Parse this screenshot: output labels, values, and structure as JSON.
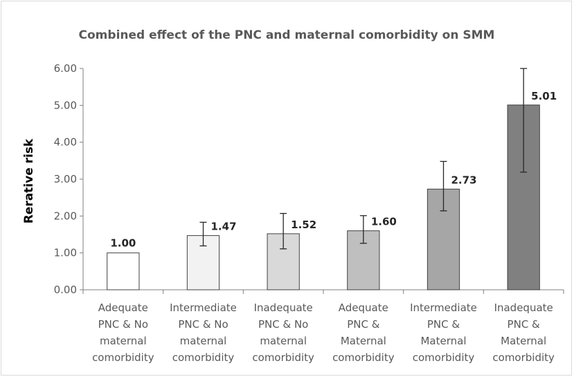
{
  "chart_data": {
    "type": "bar",
    "title": "Combined effect of the PNC and maternal comorbidity on SMM",
    "xlabel": "",
    "ylabel": "Rerative risk",
    "ylim": [
      0,
      6
    ],
    "y_ticks": [
      0,
      1,
      2,
      3,
      4,
      5,
      6
    ],
    "y_tick_labels": [
      "0.00",
      "1.00",
      "2.00",
      "3.00",
      "4.00",
      "5.00",
      "6.00"
    ],
    "grid": false,
    "legend": "none",
    "categories": [
      [
        "Adequate",
        "PNC & No",
        "maternal",
        "comorbidity"
      ],
      [
        "Intermediate",
        "PNC & No",
        "maternal",
        "comorbidity"
      ],
      [
        "Inadequate",
        "PNC & No",
        "maternal",
        "comorbidity"
      ],
      [
        "Adequate",
        "PNC &",
        "Maternal",
        "comorbidity"
      ],
      [
        "Intermediate",
        "PNC &",
        "Maternal",
        "comorbidity"
      ],
      [
        "Inadequate",
        "PNC &",
        "Maternal",
        "comorbidity"
      ]
    ],
    "values": [
      1.0,
      1.47,
      1.52,
      1.6,
      2.73,
      5.01
    ],
    "value_labels": [
      "1.00",
      "1.47",
      "1.52",
      "1.60",
      "2.73",
      "5.01"
    ],
    "error_low": [
      null,
      1.19,
      1.11,
      1.26,
      2.14,
      3.19
    ],
    "error_high": [
      null,
      1.83,
      2.07,
      2.01,
      3.48,
      6.0
    ],
    "bar_colors": [
      "#ffffff",
      "#f2f2f2",
      "#d9d9d9",
      "#bfbfbf",
      "#a6a6a6",
      "#808080"
    ],
    "bar_edge_color": "#404040",
    "axis_color": "#7f7f7f"
  }
}
